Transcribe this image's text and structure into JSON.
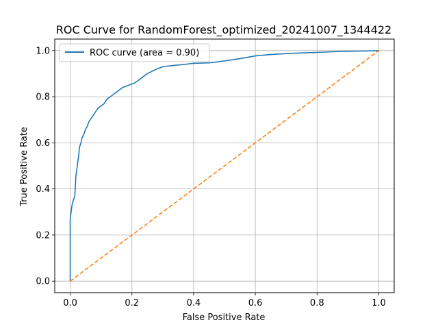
{
  "chart_data": {
    "type": "line",
    "title": "ROC Curve for RandomForest_optimized_20241007_1344422",
    "xlabel": "False Positive Rate",
    "ylabel": "True Positive Rate",
    "xlim": [
      -0.05,
      1.05
    ],
    "ylim": [
      -0.05,
      1.05
    ],
    "xticks": [
      "0.0",
      "0.2",
      "0.4",
      "0.6",
      "0.8",
      "1.0"
    ],
    "yticks": [
      "0.0",
      "0.2",
      "0.4",
      "0.6",
      "0.8",
      "1.0"
    ],
    "grid": true,
    "legend": {
      "placement": "upper-left"
    },
    "series": [
      {
        "name": "ROC curve (area = 0.90)",
        "style": "solid",
        "color": "#1f77b4",
        "x": [
          0.0,
          0.0,
          0.003,
          0.006,
          0.01,
          0.015,
          0.018,
          0.018,
          0.022,
          0.028,
          0.03,
          0.035,
          0.038,
          0.045,
          0.05,
          0.055,
          0.06,
          0.065,
          0.07,
          0.08,
          0.09,
          0.1,
          0.11,
          0.12,
          0.13,
          0.14,
          0.15,
          0.17,
          0.19,
          0.21,
          0.23,
          0.25,
          0.28,
          0.3,
          0.33,
          0.37,
          0.4,
          0.45,
          0.5,
          0.55,
          0.6,
          0.65,
          0.7,
          0.75,
          0.8,
          0.85,
          0.9,
          0.95,
          1.0
        ],
        "y": [
          0.0,
          0.27,
          0.3,
          0.33,
          0.35,
          0.37,
          0.44,
          0.45,
          0.49,
          0.55,
          0.58,
          0.6,
          0.62,
          0.64,
          0.66,
          0.67,
          0.69,
          0.7,
          0.71,
          0.73,
          0.75,
          0.76,
          0.77,
          0.79,
          0.8,
          0.81,
          0.82,
          0.84,
          0.85,
          0.86,
          0.88,
          0.9,
          0.92,
          0.93,
          0.935,
          0.94,
          0.945,
          0.947,
          0.955,
          0.965,
          0.977,
          0.983,
          0.987,
          0.99,
          0.992,
          0.995,
          0.997,
          0.998,
          1.0
        ]
      },
      {
        "name": "",
        "style": "dashed",
        "color": "#ff7f0e",
        "x": [
          0.0,
          1.0
        ],
        "y": [
          0.0,
          1.0
        ]
      }
    ]
  }
}
